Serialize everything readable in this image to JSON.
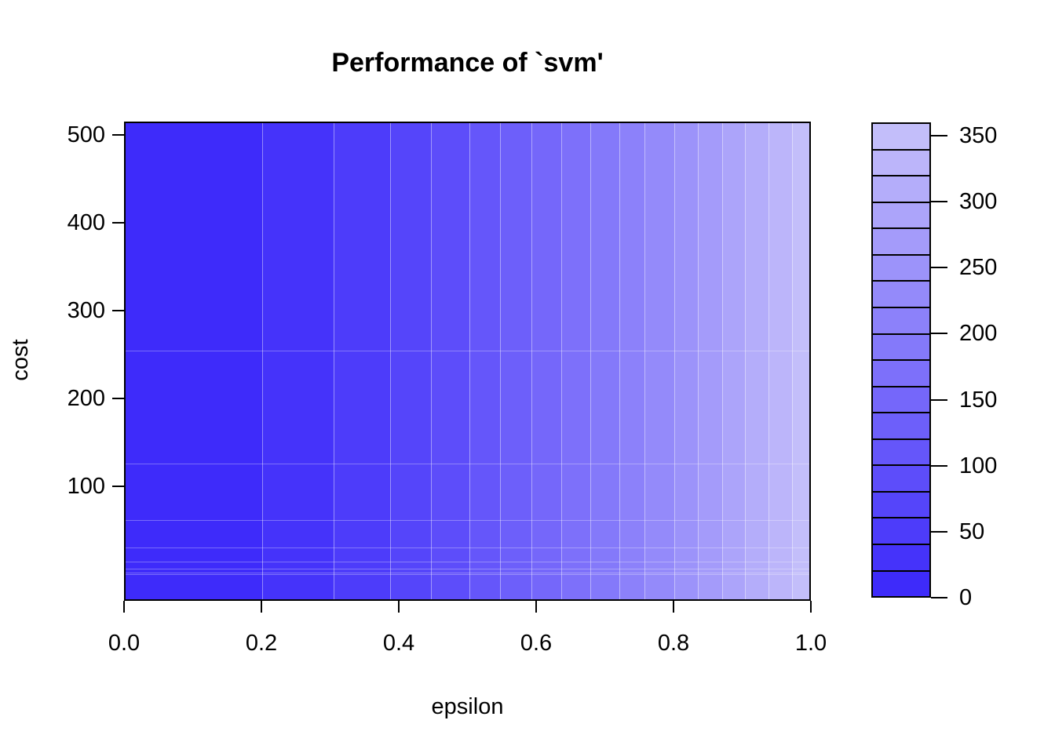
{
  "title": "Performance of `svm'",
  "x_axis": {
    "label": "epsilon",
    "tick_labels": [
      "0.0",
      "0.2",
      "0.4",
      "0.6",
      "0.8",
      "1.0"
    ],
    "tick_values": [
      0.0,
      0.2,
      0.4,
      0.6,
      0.8,
      1.0
    ],
    "range": [
      0,
      1
    ]
  },
  "y_axis": {
    "label": "cost",
    "tick_labels": [
      "100",
      "200",
      "300",
      "400",
      "500"
    ],
    "tick_values": [
      100,
      200,
      300,
      400,
      500
    ],
    "axis_span": [
      -30,
      515
    ]
  },
  "color_key": {
    "tick_labels": [
      "0",
      "50",
      "100",
      "150",
      "200",
      "250",
      "300",
      "350"
    ],
    "tick_values": [
      0,
      50,
      100,
      150,
      200,
      250,
      300,
      350
    ],
    "value_range": [
      0,
      360
    ],
    "block_step": 20,
    "position": "right"
  },
  "colors": {
    "background": "#ffffff",
    "text": "#000000",
    "box_border": "#000000",
    "lowest_value": "#3E2BFA",
    "highest_value": "#C3BEFA"
  },
  "chart_data": {
    "type": "heatmap",
    "subtype": "filled-contour",
    "title": "Performance of `svm'",
    "xlabel": "epsilon",
    "ylabel": "cost",
    "x_range": [
      0,
      1
    ],
    "y_axis_span": [
      -30,
      515
    ],
    "value_levels": [
      0,
      20,
      40,
      60,
      80,
      100,
      120,
      140,
      160,
      180,
      200,
      220,
      240,
      260,
      280,
      300,
      320,
      340,
      360
    ],
    "palette": [
      "#3E2BFA",
      "#4533FA",
      "#4D3CFA",
      "#5545FA",
      "#5D4DFA",
      "#6556FA",
      "#6D5FFA",
      "#7567FA",
      "#7D70FA",
      "#8479FA",
      "#8C81FA",
      "#948AFA",
      "#9C93FA",
      "#A49BFA",
      "#ACA4FA",
      "#B4ADFA",
      "#BCB5FA",
      "#C3BEFA"
    ],
    "bands": [
      {
        "from_epsilon": 0.0,
        "to_epsilon": 0.199,
        "value_min": 0,
        "value_max": 20,
        "color": "#3E2BFA"
      },
      {
        "from_epsilon": 0.199,
        "to_epsilon": 0.303,
        "value_min": 20,
        "value_max": 40,
        "color": "#4533FA"
      },
      {
        "from_epsilon": 0.303,
        "to_epsilon": 0.385,
        "value_min": 40,
        "value_max": 60,
        "color": "#4D3CFA"
      },
      {
        "from_epsilon": 0.385,
        "to_epsilon": 0.445,
        "value_min": 60,
        "value_max": 80,
        "color": "#5545FA"
      },
      {
        "from_epsilon": 0.445,
        "to_epsilon": 0.5,
        "value_min": 80,
        "value_max": 100,
        "color": "#5D4DFA"
      },
      {
        "from_epsilon": 0.5,
        "to_epsilon": 0.545,
        "value_min": 100,
        "value_max": 120,
        "color": "#6556FA"
      },
      {
        "from_epsilon": 0.545,
        "to_epsilon": 0.591,
        "value_min": 120,
        "value_max": 140,
        "color": "#6D5FFA"
      },
      {
        "from_epsilon": 0.591,
        "to_epsilon": 0.634,
        "value_min": 140,
        "value_max": 160,
        "color": "#7567FA"
      },
      {
        "from_epsilon": 0.634,
        "to_epsilon": 0.677,
        "value_min": 160,
        "value_max": 180,
        "color": "#7D70FA"
      },
      {
        "from_epsilon": 0.677,
        "to_epsilon": 0.719,
        "value_min": 180,
        "value_max": 200,
        "color": "#8479FA"
      },
      {
        "from_epsilon": 0.719,
        "to_epsilon": 0.755,
        "value_min": 200,
        "value_max": 220,
        "color": "#8C81FA"
      },
      {
        "from_epsilon": 0.755,
        "to_epsilon": 0.799,
        "value_min": 220,
        "value_max": 240,
        "color": "#948AFA"
      },
      {
        "from_epsilon": 0.799,
        "to_epsilon": 0.833,
        "value_min": 240,
        "value_max": 260,
        "color": "#9C93FA"
      },
      {
        "from_epsilon": 0.833,
        "to_epsilon": 0.868,
        "value_min": 260,
        "value_max": 280,
        "color": "#A49BFA"
      },
      {
        "from_epsilon": 0.868,
        "to_epsilon": 0.902,
        "value_min": 280,
        "value_max": 300,
        "color": "#ACA4FA"
      },
      {
        "from_epsilon": 0.902,
        "to_epsilon": 0.936,
        "value_min": 300,
        "value_max": 320,
        "color": "#B4ADFA"
      },
      {
        "from_epsilon": 0.936,
        "to_epsilon": 0.97,
        "value_min": 320,
        "value_max": 340,
        "color": "#BCB5FA"
      },
      {
        "from_epsilon": 0.97,
        "to_epsilon": 1.0,
        "value_min": 340,
        "value_max": 360,
        "color": "#C3BEFA"
      }
    ],
    "cost_cell_boundaries": [
      256,
      128,
      64,
      32,
      16,
      8,
      4,
      2
    ],
    "legend_position": "right",
    "notes": "Filled-contour performance heatmap (e1071 tune plot). Performance value rises with epsilon from <20 (dark blue, left) to >340 (pale lavender, right) and is nearly independent of cost; faint horizontal lines mark cost grid cells near the bottom."
  }
}
